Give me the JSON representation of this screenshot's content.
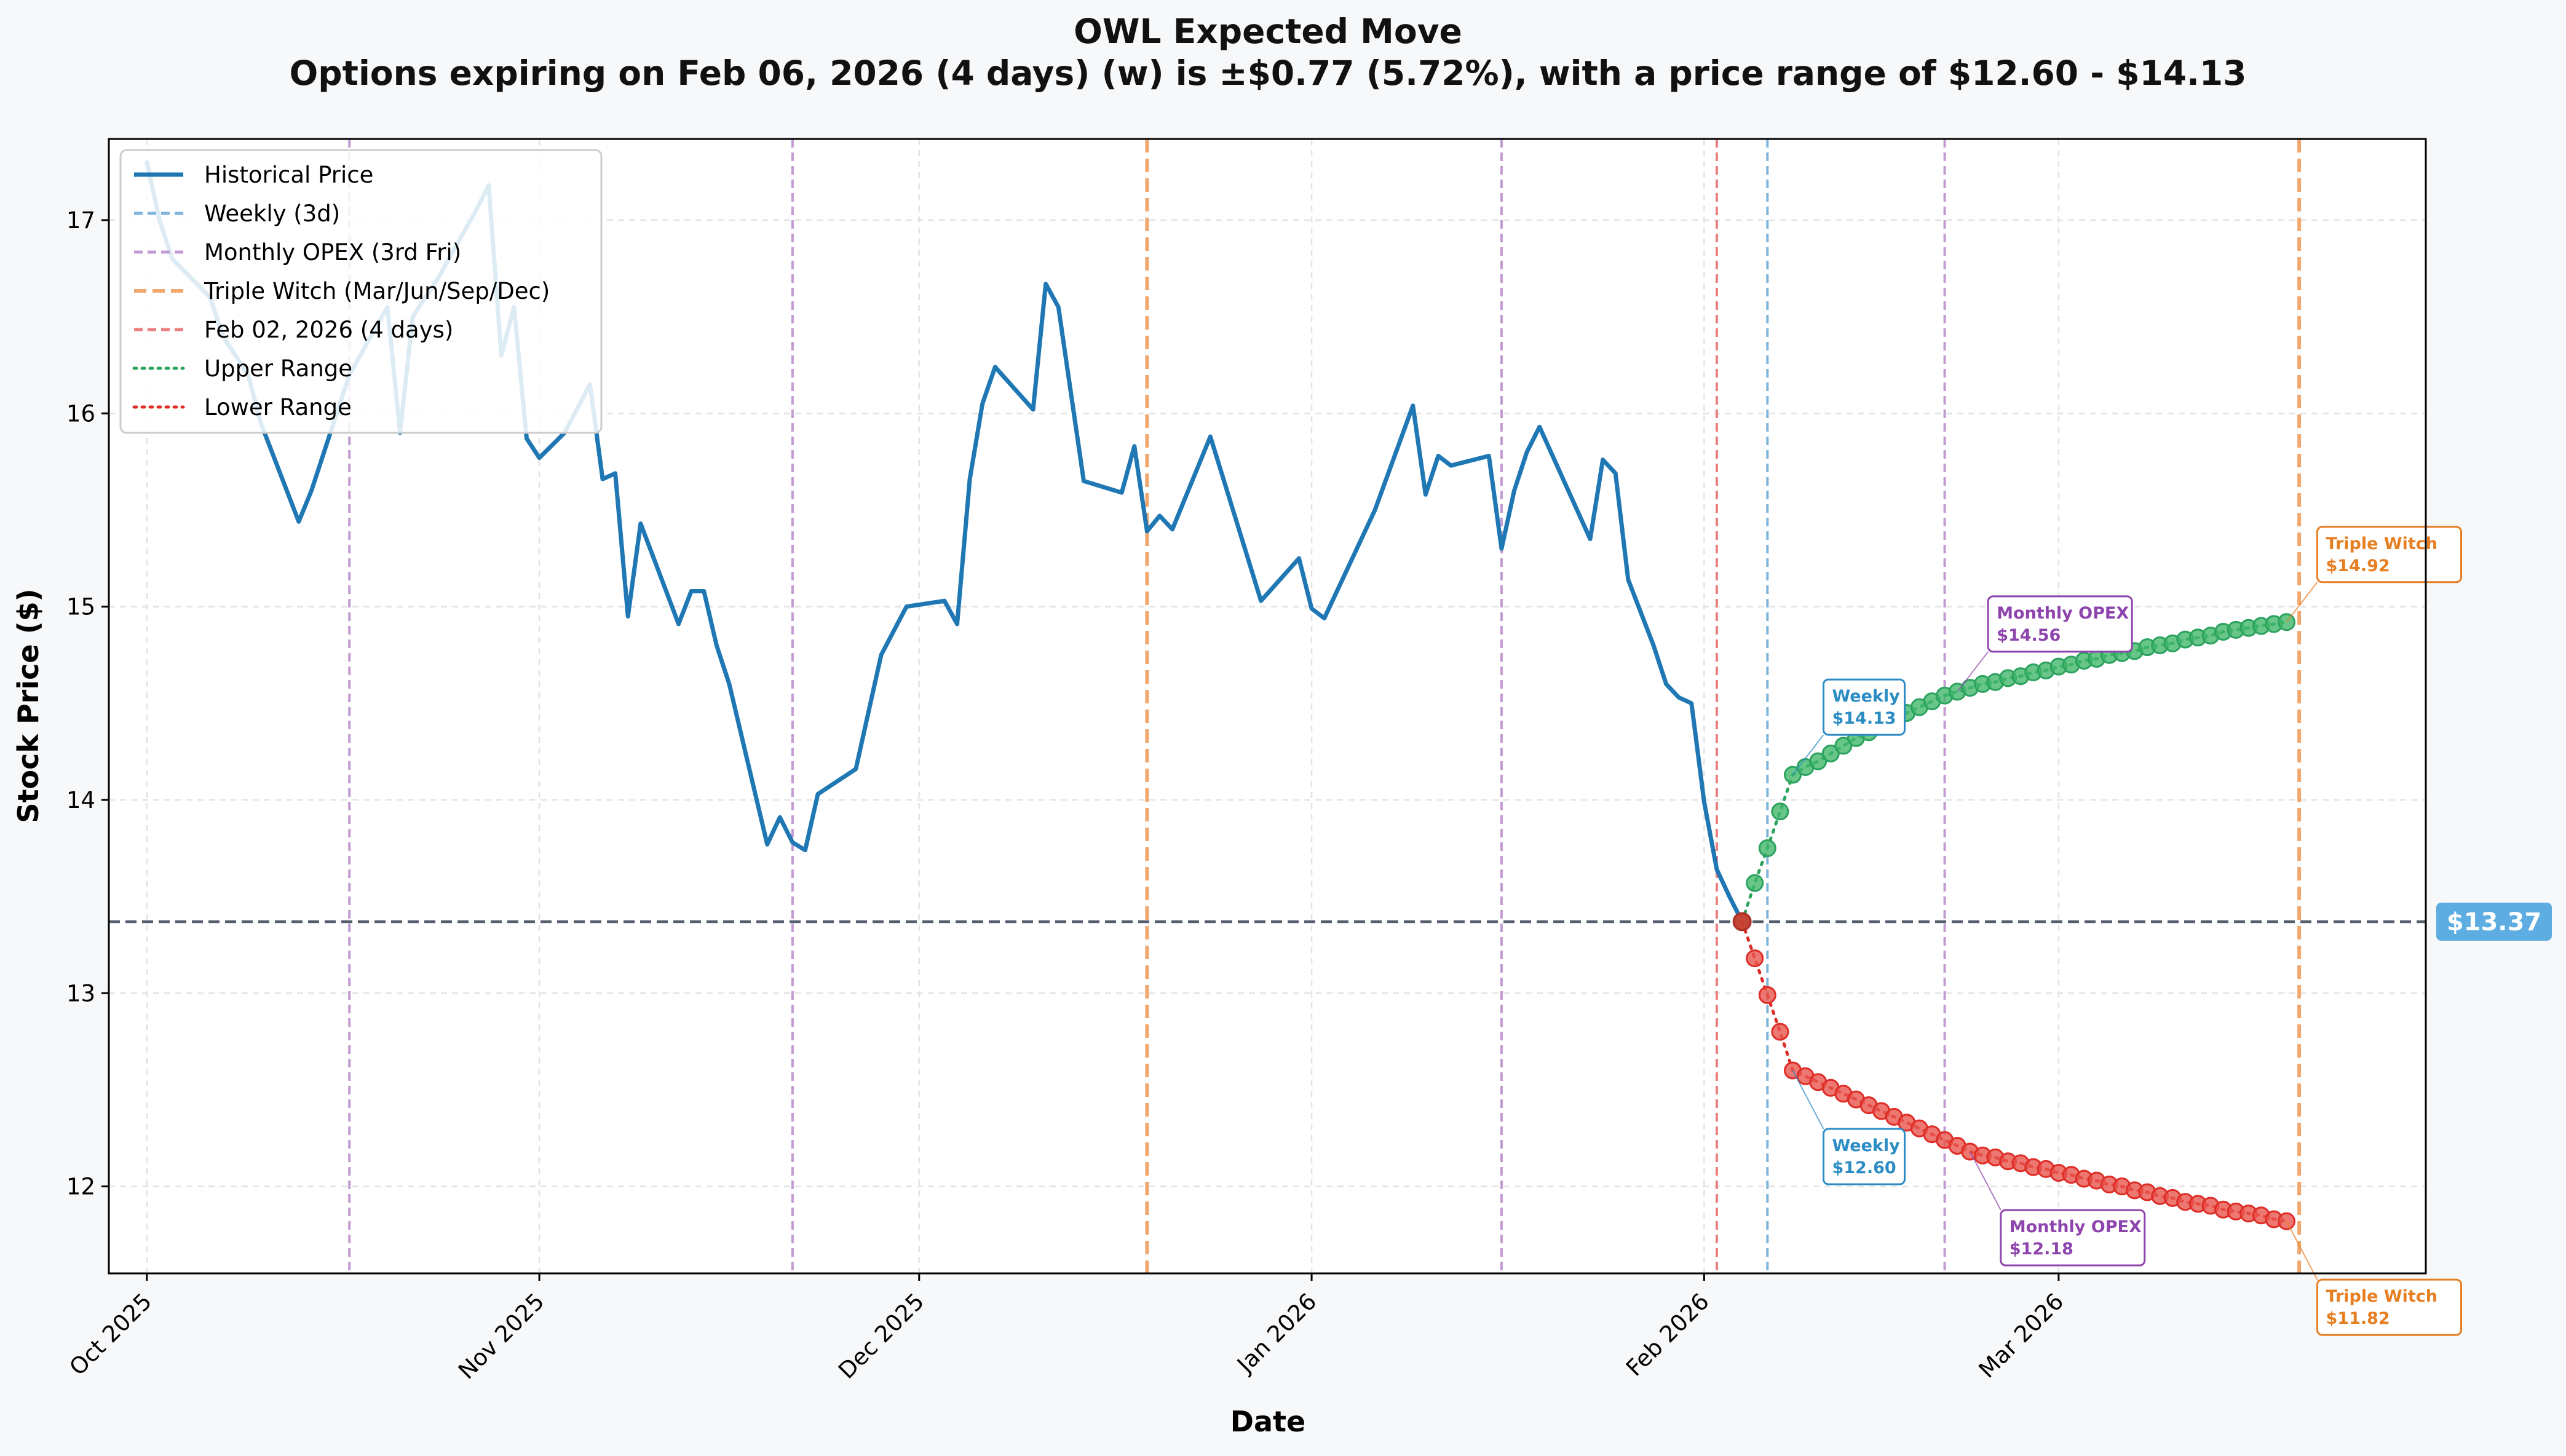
{
  "chart_data": {
    "type": "line",
    "title": "OWL Expected Move",
    "subtitle": "Options expiring on Feb 06, 2026 (4 days) (w) is ±$0.77 (5.72%), with a price range of $12.60 - $14.13",
    "xlabel": "Date",
    "ylabel": "Stock Price ($)",
    "xlim": [
      "2025-09-28",
      "2026-03-30"
    ],
    "ylim": [
      11.55,
      17.42
    ],
    "yticks": [
      12,
      13,
      14,
      15,
      16,
      17
    ],
    "xticks": [
      {
        "date": "2025-10-01",
        "label": "Oct 2025"
      },
      {
        "date": "2025-11-01",
        "label": "Nov 2025"
      },
      {
        "date": "2025-12-01",
        "label": "Dec 2025"
      },
      {
        "date": "2026-01-01",
        "label": "Jan 2026"
      },
      {
        "date": "2026-02-01",
        "label": "Feb 2026"
      },
      {
        "date": "2026-03-01",
        "label": "Mar 2026"
      }
    ],
    "grid": true,
    "legend_position": "top-left",
    "current_price": {
      "value": 13.37,
      "label": "$13.37"
    },
    "series": [
      {
        "name": "Historical Price",
        "color": "#1f77b4",
        "points": [
          [
            "2025-10-01",
            17.3
          ],
          [
            "2025-10-02",
            17.0
          ],
          [
            "2025-10-03",
            16.8
          ],
          [
            "2025-10-06",
            16.6
          ],
          [
            "2025-10-07",
            16.4
          ],
          [
            "2025-10-08",
            16.3
          ],
          [
            "2025-10-09",
            16.2
          ],
          [
            "2025-10-10",
            15.95
          ],
          [
            "2025-10-13",
            15.44
          ],
          [
            "2025-10-14",
            15.6
          ],
          [
            "2025-10-15",
            15.8
          ],
          [
            "2025-10-16",
            16.0
          ],
          [
            "2025-10-17",
            16.2
          ],
          [
            "2025-10-20",
            16.55
          ],
          [
            "2025-10-21",
            15.9
          ],
          [
            "2025-10-22",
            16.5
          ],
          [
            "2025-10-23",
            16.6
          ],
          [
            "2025-10-24",
            16.7
          ],
          [
            "2025-10-27",
            17.05
          ],
          [
            "2025-10-28",
            17.18
          ],
          [
            "2025-10-29",
            16.3
          ],
          [
            "2025-10-30",
            16.55
          ],
          [
            "2025-10-31",
            15.87
          ],
          [
            "2025-11-01",
            15.77
          ],
          [
            "2025-11-03",
            15.9
          ],
          [
            "2025-11-05",
            16.15
          ],
          [
            "2025-11-06",
            15.66
          ],
          [
            "2025-11-07",
            15.69
          ],
          [
            "2025-11-08",
            14.95
          ],
          [
            "2025-11-09",
            15.43
          ],
          [
            "2025-11-12",
            14.91
          ],
          [
            "2025-11-13",
            15.08
          ],
          [
            "2025-11-14",
            15.08
          ],
          [
            "2025-11-15",
            14.8
          ],
          [
            "2025-11-16",
            14.6
          ],
          [
            "2025-11-19",
            13.77
          ],
          [
            "2025-11-20",
            13.91
          ],
          [
            "2025-11-21",
            13.78
          ],
          [
            "2025-11-22",
            13.74
          ],
          [
            "2025-11-23",
            14.03
          ],
          [
            "2025-11-26",
            14.16
          ],
          [
            "2025-11-28",
            14.75
          ],
          [
            "2025-11-30",
            15.0
          ],
          [
            "2025-12-02",
            15.02
          ],
          [
            "2025-12-03",
            15.03
          ],
          [
            "2025-12-04",
            14.91
          ],
          [
            "2025-12-05",
            15.66
          ],
          [
            "2025-12-06",
            16.05
          ],
          [
            "2025-12-07",
            16.24
          ],
          [
            "2025-12-10",
            16.02
          ],
          [
            "2025-12-11",
            16.67
          ],
          [
            "2025-12-12",
            16.55
          ],
          [
            "2025-12-14",
            15.65
          ],
          [
            "2025-12-17",
            15.59
          ],
          [
            "2025-12-18",
            15.83
          ],
          [
            "2025-12-19",
            15.39
          ],
          [
            "2025-12-20",
            15.47
          ],
          [
            "2025-12-21",
            15.4
          ],
          [
            "2025-12-24",
            15.88
          ],
          [
            "2025-12-28",
            15.03
          ],
          [
            "2025-12-31",
            15.25
          ],
          [
            "2026-01-01",
            14.99
          ],
          [
            "2026-01-02",
            14.94
          ],
          [
            "2026-01-06",
            15.5
          ],
          [
            "2026-01-09",
            16.04
          ],
          [
            "2026-01-10",
            15.58
          ],
          [
            "2026-01-11",
            15.78
          ],
          [
            "2026-01-12",
            15.73
          ],
          [
            "2026-01-15",
            15.78
          ],
          [
            "2026-01-16",
            15.3
          ],
          [
            "2026-01-17",
            15.6
          ],
          [
            "2026-01-18",
            15.8
          ],
          [
            "2026-01-19",
            15.93
          ],
          [
            "2026-01-23",
            15.35
          ],
          [
            "2026-01-24",
            15.76
          ],
          [
            "2026-01-25",
            15.69
          ],
          [
            "2026-01-26",
            15.14
          ],
          [
            "2026-01-28",
            14.8
          ],
          [
            "2026-01-29",
            14.6
          ],
          [
            "2026-01-30",
            14.53
          ],
          [
            "2026-01-31",
            14.5
          ],
          [
            "2026-02-01",
            13.99
          ],
          [
            "2026-02-02",
            13.64
          ],
          [
            "2026-02-03",
            13.5
          ],
          [
            "2026-02-04",
            13.37
          ]
        ]
      },
      {
        "name": "Upper Range",
        "color": "#2ca25f",
        "points": [
          [
            "2026-02-04",
            13.37
          ],
          [
            "2026-02-05",
            13.57
          ],
          [
            "2026-02-06",
            13.75
          ],
          [
            "2026-02-07",
            13.94
          ],
          [
            "2026-02-08",
            14.13
          ],
          [
            "2026-02-09",
            14.17
          ],
          [
            "2026-02-10",
            14.2
          ],
          [
            "2026-02-11",
            14.24
          ],
          [
            "2026-02-12",
            14.28
          ],
          [
            "2026-02-13",
            14.32
          ],
          [
            "2026-02-14",
            14.35
          ],
          [
            "2026-02-15",
            14.38
          ],
          [
            "2026-02-16",
            14.42
          ],
          [
            "2026-02-17",
            14.45
          ],
          [
            "2026-02-18",
            14.48
          ],
          [
            "2026-02-19",
            14.51
          ],
          [
            "2026-02-20",
            14.54
          ],
          [
            "2026-02-21",
            14.56
          ],
          [
            "2026-02-22",
            14.58
          ],
          [
            "2026-02-23",
            14.6
          ],
          [
            "2026-02-24",
            14.61
          ],
          [
            "2026-02-25",
            14.63
          ],
          [
            "2026-02-26",
            14.64
          ],
          [
            "2026-02-27",
            14.66
          ],
          [
            "2026-02-28",
            14.67
          ],
          [
            "2026-03-01",
            14.69
          ],
          [
            "2026-03-02",
            14.7
          ],
          [
            "2026-03-03",
            14.72
          ],
          [
            "2026-03-04",
            14.73
          ],
          [
            "2026-03-05",
            14.75
          ],
          [
            "2026-03-06",
            14.76
          ],
          [
            "2026-03-07",
            14.77
          ],
          [
            "2026-03-08",
            14.79
          ],
          [
            "2026-03-09",
            14.8
          ],
          [
            "2026-03-10",
            14.81
          ],
          [
            "2026-03-11",
            14.83
          ],
          [
            "2026-03-12",
            14.84
          ],
          [
            "2026-03-13",
            14.85
          ],
          [
            "2026-03-14",
            14.87
          ],
          [
            "2026-03-15",
            14.88
          ],
          [
            "2026-03-16",
            14.89
          ],
          [
            "2026-03-17",
            14.9
          ],
          [
            "2026-03-18",
            14.91
          ],
          [
            "2026-03-19",
            14.92
          ]
        ]
      },
      {
        "name": "Lower Range",
        "color": "#de2d26",
        "points": [
          [
            "2026-02-04",
            13.37
          ],
          [
            "2026-02-05",
            13.18
          ],
          [
            "2026-02-06",
            12.99
          ],
          [
            "2026-02-07",
            12.8
          ],
          [
            "2026-02-08",
            12.6
          ],
          [
            "2026-02-09",
            12.57
          ],
          [
            "2026-02-10",
            12.54
          ],
          [
            "2026-02-11",
            12.51
          ],
          [
            "2026-02-12",
            12.48
          ],
          [
            "2026-02-13",
            12.45
          ],
          [
            "2026-02-14",
            12.42
          ],
          [
            "2026-02-15",
            12.39
          ],
          [
            "2026-02-16",
            12.36
          ],
          [
            "2026-02-17",
            12.33
          ],
          [
            "2026-02-18",
            12.3
          ],
          [
            "2026-02-19",
            12.27
          ],
          [
            "2026-02-20",
            12.24
          ],
          [
            "2026-02-21",
            12.21
          ],
          [
            "2026-02-22",
            12.18
          ],
          [
            "2026-02-23",
            12.16
          ],
          [
            "2026-02-24",
            12.15
          ],
          [
            "2026-02-25",
            12.13
          ],
          [
            "2026-02-26",
            12.12
          ],
          [
            "2026-02-27",
            12.1
          ],
          [
            "2026-02-28",
            12.09
          ],
          [
            "2026-03-01",
            12.07
          ],
          [
            "2026-03-02",
            12.06
          ],
          [
            "2026-03-03",
            12.04
          ],
          [
            "2026-03-04",
            12.03
          ],
          [
            "2026-03-05",
            12.01
          ],
          [
            "2026-03-06",
            12.0
          ],
          [
            "2026-03-07",
            11.98
          ],
          [
            "2026-03-08",
            11.97
          ],
          [
            "2026-03-09",
            11.95
          ],
          [
            "2026-03-10",
            11.94
          ],
          [
            "2026-03-11",
            11.92
          ],
          [
            "2026-03-12",
            11.91
          ],
          [
            "2026-03-13",
            11.9
          ],
          [
            "2026-03-14",
            11.88
          ],
          [
            "2026-03-15",
            11.87
          ],
          [
            "2026-03-16",
            11.86
          ],
          [
            "2026-03-17",
            11.85
          ],
          [
            "2026-03-18",
            11.83
          ],
          [
            "2026-03-19",
            11.82
          ]
        ]
      }
    ],
    "vlines": [
      {
        "date": "2025-10-17",
        "kind": "Monthly OPEX (3rd Fri)",
        "color": "#c39bd3",
        "dash": "14,8",
        "width": 4
      },
      {
        "date": "2025-11-21",
        "kind": "Monthly OPEX (3rd Fri)",
        "color": "#c39bd3",
        "dash": "14,8",
        "width": 4
      },
      {
        "date": "2025-12-19",
        "kind": "Triple Witch (Mar/Jun/Sep/Dec)",
        "color": "#f0a86e",
        "dash": "22,10",
        "width": 6
      },
      {
        "date": "2026-01-16",
        "kind": "Monthly OPEX (3rd Fri)",
        "color": "#c39bd3",
        "dash": "14,8",
        "width": 4
      },
      {
        "date": "2026-02-02",
        "kind": "Feb 02, 2026 (4 days)",
        "color": "#ec8080",
        "dash": "14,8",
        "width": 4
      },
      {
        "date": "2026-02-06",
        "kind": "Weekly (3d)",
        "color": "#7fb5dd",
        "dash": "14,8",
        "width": 4
      },
      {
        "date": "2026-02-20",
        "kind": "Monthly OPEX (3rd Fri)",
        "color": "#c39bd3",
        "dash": "14,8",
        "width": 4
      },
      {
        "date": "2026-03-20",
        "kind": "Triple Witch (Mar/Jun/Sep/Dec)",
        "color": "#f0a86e",
        "dash": "22,10",
        "width": 6
      }
    ],
    "legend": [
      {
        "label": "Historical Price",
        "color": "#1f77b4",
        "style": "solid"
      },
      {
        "label": "Weekly (3d)",
        "color": "#7fb5dd",
        "style": "dashed"
      },
      {
        "label": "Monthly OPEX (3rd Fri)",
        "color": "#c39bd3",
        "style": "dashed"
      },
      {
        "label": "Triple Witch (Mar/Jun/Sep/Dec)",
        "color": "#f0a86e",
        "style": "dashed-thick"
      },
      {
        "label": "Feb 02, 2026 (4 days)",
        "color": "#ec8080",
        "style": "dashed"
      },
      {
        "label": "Upper Range",
        "color": "#2ca25f",
        "style": "dotted"
      },
      {
        "label": "Lower Range",
        "color": "#de2d26",
        "style": "dotted"
      }
    ],
    "annotations": [
      {
        "title": "Weekly",
        "value": "$14.13",
        "date": "2026-02-08",
        "price": 14.13,
        "color": "#2b8cc4",
        "placement": "above-right"
      },
      {
        "title": "Weekly",
        "value": "$12.60",
        "date": "2026-02-08",
        "price": 12.6,
        "color": "#2b8cc4",
        "placement": "below-right"
      },
      {
        "title": "Monthly OPEX",
        "value": "$14.56",
        "date": "2026-02-21",
        "price": 14.56,
        "color": "#8e44ad",
        "placement": "above-right"
      },
      {
        "title": "Monthly OPEX",
        "value": "$12.18",
        "date": "2026-02-22",
        "price": 12.18,
        "color": "#8e44ad",
        "placement": "below-right"
      },
      {
        "title": "Triple Witch",
        "value": "$14.92",
        "date": "2026-03-19",
        "price": 14.92,
        "color": "#e67e22",
        "placement": "above-right"
      },
      {
        "title": "Triple Witch",
        "value": "$11.82",
        "date": "2026-03-19",
        "price": 11.82,
        "color": "#e67e22",
        "placement": "below-right"
      }
    ]
  }
}
